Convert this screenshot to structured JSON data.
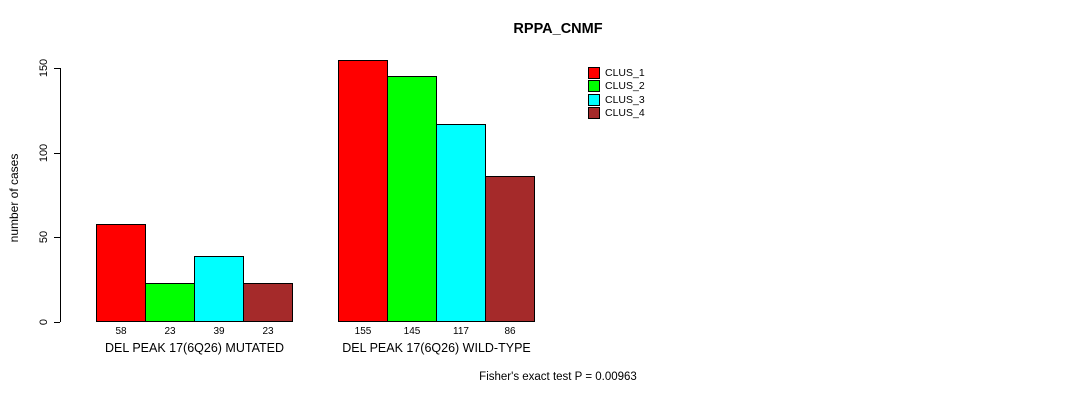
{
  "chart_data": {
    "type": "bar",
    "title": "RPPA_CNMF",
    "ylabel": "number of cases",
    "xlabel": "",
    "ylim": [
      0,
      150
    ],
    "yticks": [
      0,
      50,
      100,
      150
    ],
    "grid": false,
    "legend_position": "top-right",
    "bar_value_labels_shown": true,
    "groups": [
      "DEL PEAK 17(6Q26) MUTATED",
      "DEL PEAK 17(6Q26) WILD-TYPE"
    ],
    "series": [
      {
        "name": "CLUS_1",
        "color": "#ff0000",
        "values": [
          58,
          155
        ]
      },
      {
        "name": "CLUS_2",
        "color": "#00ff00",
        "values": [
          23,
          145
        ]
      },
      {
        "name": "CLUS_3",
        "color": "#00ffff",
        "values": [
          39,
          117
        ]
      },
      {
        "name": "CLUS_4",
        "color": "#a52a2a",
        "values": [
          23,
          86
        ]
      }
    ],
    "footer": "Fisher's exact test P = 0.00963"
  },
  "colors": {
    "axis": "#000000",
    "text": "#000000",
    "background": "#ffffff"
  }
}
